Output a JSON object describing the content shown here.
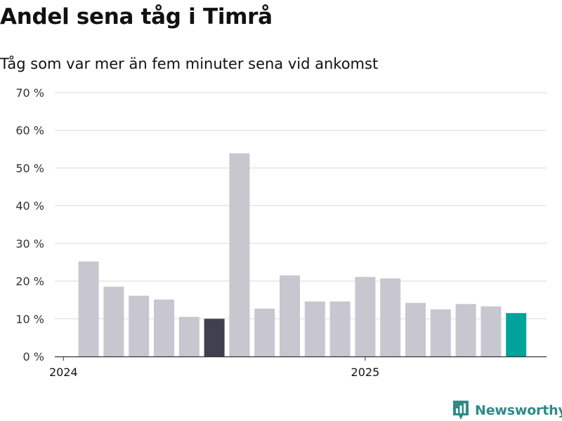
{
  "chart_data": {
    "type": "bar",
    "title": "Andel sena tåg i Timrå",
    "subtitle": "Tåg som var mer än fem minuter sena vid ankomst",
    "yticks": [
      "0 %",
      "10 %",
      "20 %",
      "30 %",
      "40 %",
      "50 %",
      "60 %",
      "70 %"
    ],
    "ylim": [
      0,
      70
    ],
    "xtick_labels": [
      {
        "label": "2024",
        "month_index": 0
      },
      {
        "label": "2025",
        "month_index": 12
      }
    ],
    "values": [
      25.2,
      18.5,
      16.1,
      15.1,
      10.5,
      10.0,
      53.9,
      12.7,
      21.5,
      14.6,
      14.6,
      21.1,
      20.7,
      14.2,
      12.5,
      13.9,
      13.3,
      11.5
    ],
    "start_month_index": 1,
    "highlight": {
      "index": 5,
      "color": "#41404e"
    },
    "latest": {
      "index": 17,
      "color": "#00a39a"
    },
    "bar_color": "#c8c7d0",
    "grid": true
  },
  "branding": {
    "name": "Newsworthy",
    "icon": "newsworthy-logo-icon",
    "color": "#2e8b88"
  }
}
